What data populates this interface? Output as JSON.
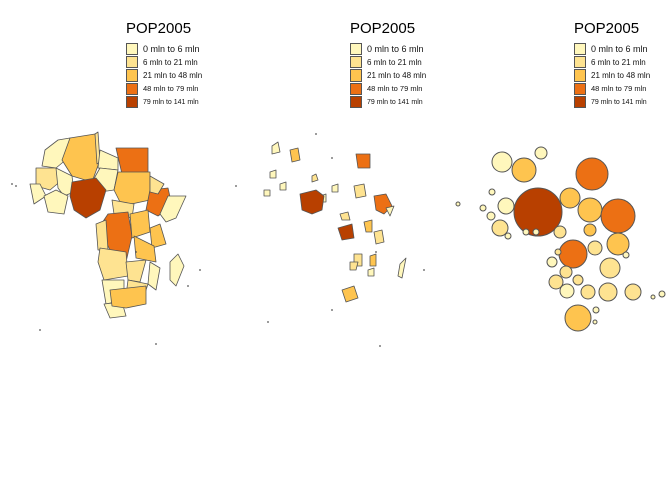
{
  "legend": {
    "title": "POP2005",
    "classes": [
      {
        "label": "0 mln to 6 mln",
        "color": "#FFF7BC"
      },
      {
        "label": "6 mln to 21 mln",
        "color": "#FEE391"
      },
      {
        "label": "21 mln to 48 mln",
        "color": "#FEC44F"
      },
      {
        "label": "48 mln to 79 mln",
        "color": "#EC7014"
      },
      {
        "label": "79 mln to 141 mln",
        "color": "#B84000"
      }
    ]
  },
  "panels": [
    {
      "map_type": "choropleth"
    },
    {
      "map_type": "cartogram"
    },
    {
      "map_type": "proportional-symbols"
    }
  ],
  "border_color": "#555555"
}
